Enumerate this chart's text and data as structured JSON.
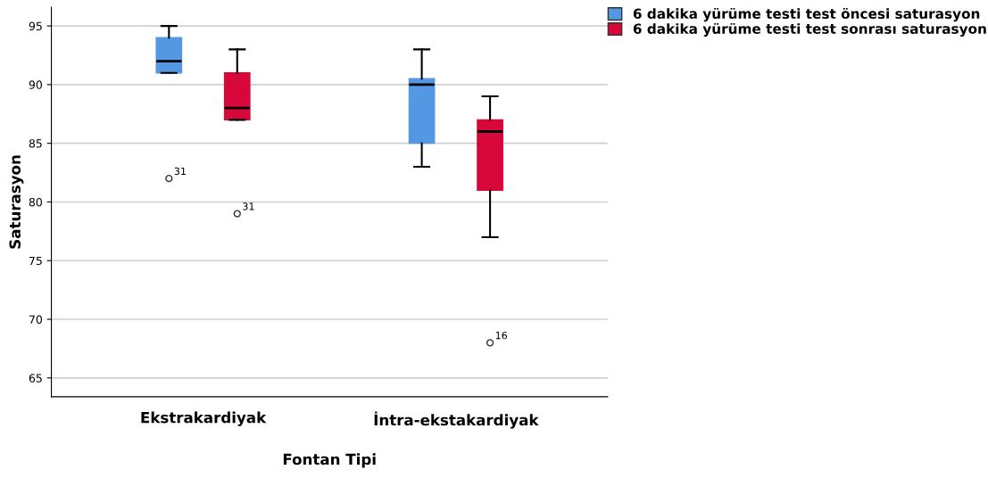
{
  "chart_data": {
    "type": "box",
    "xlabel": "Fontan Tipi",
    "ylabel": "Saturasyon",
    "categories": [
      "Ekstrakardiyak",
      "İntra-ekstakardiyak"
    ],
    "series": [
      {
        "name": "6 dakika yürüme testi test öncesi saturasyon",
        "color": "#5497e3",
        "boxes": [
          {
            "low": 91,
            "q1": 91,
            "median": 92,
            "q3": 94,
            "high": 95,
            "outliers": [
              82
            ]
          },
          {
            "low": 83,
            "q1": 85,
            "median": 90,
            "q3": 90.5,
            "high": 93
          }
        ]
      },
      {
        "name": "6 dakika yürüme testi test sonrası saturasyon",
        "color": "#d8073a",
        "boxes": [
          {
            "low": 87,
            "q1": 87,
            "median": 88,
            "q3": 91,
            "high": 93,
            "outliers": [
              79
            ]
          },
          {
            "low": 77,
            "q1": 81,
            "median": 86,
            "q3": 87,
            "high": 89,
            "outliers": [
              68
            ]
          }
        ]
      }
    ],
    "annotations": [
      "31",
      "31",
      "16"
    ],
    "ylim": [
      63.4,
      96.6
    ],
    "yticks": [
      65,
      70,
      75,
      80,
      85,
      90,
      95
    ],
    "grid": "y",
    "legend": "top right"
  }
}
